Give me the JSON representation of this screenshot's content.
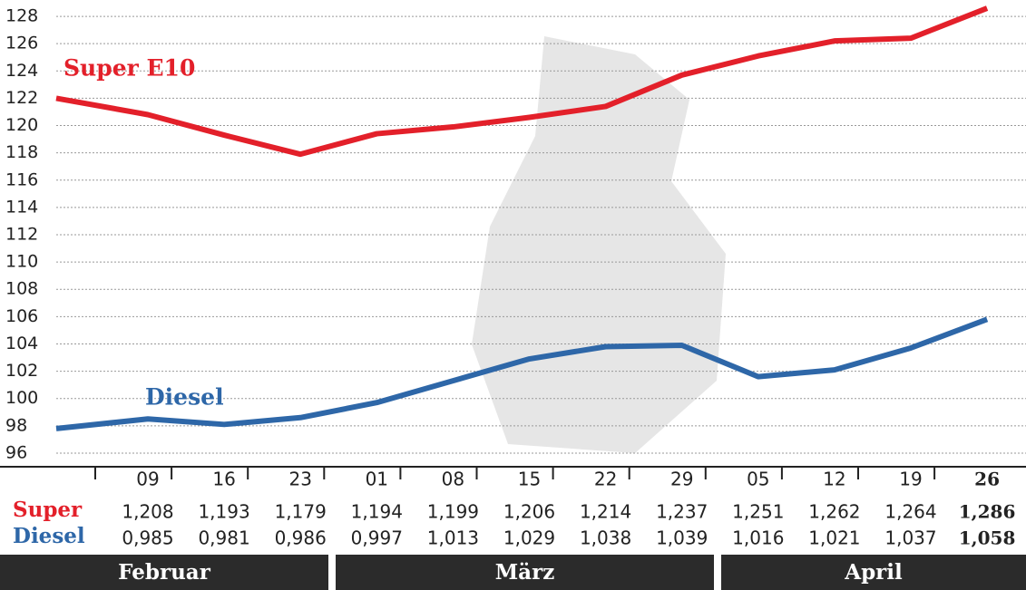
{
  "chart_data": {
    "type": "line",
    "categories": [
      null,
      "09",
      "16",
      "23",
      "01",
      "08",
      "15",
      "22",
      "29",
      "05",
      "12",
      "19",
      "26"
    ],
    "months": [
      "Februar",
      "März",
      "April"
    ],
    "series": [
      {
        "name": "Super E10",
        "row_label": "Super",
        "color": "#e3202a",
        "values": [
          122.0,
          120.8,
          119.3,
          117.9,
          119.4,
          119.9,
          120.6,
          121.4,
          123.7,
          125.1,
          126.2,
          126.4,
          128.6
        ],
        "value_labels": [
          null,
          "1,208",
          "1,193",
          "1,179",
          "1,194",
          "1,199",
          "1,206",
          "1,214",
          "1,237",
          "1,251",
          "1,262",
          "1,264",
          "1,286"
        ]
      },
      {
        "name": "Diesel",
        "row_label": "Diesel",
        "color": "#2e67a8",
        "values": [
          97.8,
          98.5,
          98.1,
          98.6,
          99.7,
          101.3,
          102.9,
          103.8,
          103.9,
          101.6,
          102.1,
          103.7,
          105.8
        ],
        "value_labels": [
          null,
          "0,985",
          "0,981",
          "0,986",
          "0,997",
          "1,013",
          "1,029",
          "1,038",
          "1,039",
          "1,016",
          "1,021",
          "1,037",
          "1,058"
        ]
      }
    ],
    "ylim": [
      95,
      129.2
    ],
    "yticks": [
      96,
      98,
      100,
      102,
      104,
      106,
      108,
      110,
      112,
      114,
      116,
      118,
      120,
      122,
      124,
      126,
      128
    ],
    "grid": true
  }
}
